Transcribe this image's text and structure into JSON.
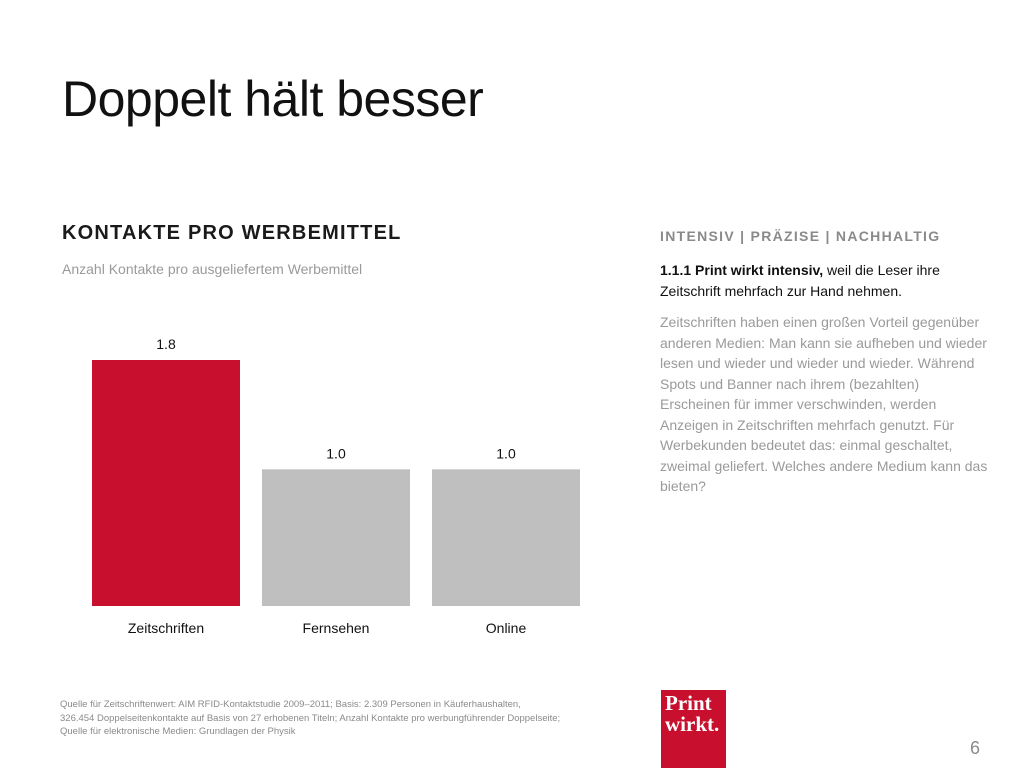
{
  "title": "Doppelt hält besser",
  "chart_heading": "KONTAKTE PRO WERBEMITTEL",
  "chart_subheading": "Anzahl Kontakte pro ausgeliefertem Werbemittel",
  "chart_data": {
    "type": "bar",
    "categories": [
      "Zeitschriften",
      "Fernsehen",
      "Online"
    ],
    "values": [
      1.8,
      1.0,
      1.0
    ],
    "value_labels": [
      "1.8",
      "1.0",
      "1.0"
    ],
    "title": "KONTAKTE PRO WERBEMITTEL",
    "subtitle": "Anzahl Kontakte pro ausgeliefertem Werbemittel",
    "xlabel": "",
    "ylabel": "",
    "ylim": [
      0,
      1.8
    ],
    "grid": false,
    "bar_colors": [
      "#c8102e",
      "#bfbfbf",
      "#bfbfbf"
    ]
  },
  "tagline": "INTENSIV | PRÄZISE | NACHHALTIG",
  "lead": {
    "bold": "1.1.1 Print wirkt intensiv,",
    "rest": " weil die Leser ihre Zeitschrift mehrfach zur Hand nehmen."
  },
  "body_text": "Zeitschriften haben einen großen Vorteil gegenüber anderen Medien: Man kann sie aufheben und wieder lesen und wieder und wieder und wieder. Während Spots und Banner nach ihrem (bezahlten) Erscheinen für immer verschwinden, werden Anzeigen in Zeitschriften mehrfach genutzt. Für Werbekunden bedeutet das: einmal geschaltet, zweimal geliefert. Welches andere Medium kann das bieten?",
  "source_note": {
    "line1": "Quelle für Zeitschriftenwert: AIM RFID-Kontaktstudie 2009–2011; Basis: 2.309 Personen in Käuferhaushalten,",
    "line2": "326.454 Doppelseitenkontakte auf Basis von 27 erhobenen Titeln; Anzahl Kontakte pro werbungführender Doppelseite;",
    "line3": "Quelle für elektronische Medien: Grundlagen der Physik"
  },
  "logo": {
    "line1": "Print",
    "line2": "wirkt."
  },
  "page_number": "6",
  "colors": {
    "accent": "#c8102e",
    "bar_neutral": "#bfbfbf",
    "muted_text": "#9a9a9a"
  }
}
